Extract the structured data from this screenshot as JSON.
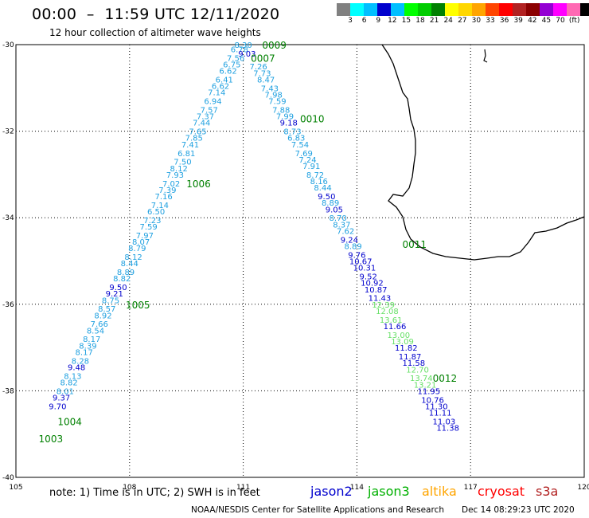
{
  "header": {
    "title": "00:00  –  11:59 UTC 12/11/2020",
    "subtitle": "12 hour collection of altimeter wave heights"
  },
  "color_scale": {
    "colors": [
      "#808080",
      "#00ffff",
      "#00bfff",
      "#0000cd",
      "#00bfff",
      "#00ff00",
      "#00cd00",
      "#008000",
      "#ffff00",
      "#ffd700",
      "#ffa500",
      "#ff4500",
      "#ff0000",
      "#b22222",
      "#8b0000",
      "#9400d3",
      "#ff00ff",
      "#ff69b4",
      "#000000"
    ],
    "labels": [
      "3",
      "6",
      "9",
      "12",
      "15",
      "18",
      "21",
      "24",
      "27",
      "30",
      "33",
      "36",
      "39",
      "42",
      "45",
      "70",
      "(ft)"
    ]
  },
  "axes": {
    "lon_labels": [
      "105",
      "108",
      "111",
      "114",
      "117",
      "120"
    ],
    "lat_labels": [
      "-30",
      "-32",
      "-34",
      "-36",
      "-38",
      "-40"
    ]
  },
  "satellite_colors": {
    "jason2": "#0000cd",
    "jason3": "#00b000",
    "altika": "#ffa500",
    "cryosat": "#ff0000",
    "s3a": "#b22222",
    "light": "#1fa0e0",
    "lightgreen": "#66e066",
    "label_green": "#008000"
  },
  "chart_data": {
    "type": "map-track",
    "lon_range": [
      105,
      120
    ],
    "lat_range": [
      -40,
      -30
    ],
    "pass_labels": [
      {
        "text": "0009",
        "lon": 111.5,
        "lat": -30.0
      },
      {
        "text": "0007",
        "lon": 111.2,
        "lat": -30.3
      },
      {
        "text": "0010",
        "lon": 112.5,
        "lat": -31.7
      },
      {
        "text": "1006",
        "lon": 109.5,
        "lat": -33.2
      },
      {
        "text": "0011",
        "lon": 115.2,
        "lat": -34.6
      },
      {
        "text": "1005",
        "lon": 107.9,
        "lat": -36.0
      },
      {
        "text": "0012",
        "lon": 116.0,
        "lat": -37.7
      },
      {
        "text": "1004",
        "lon": 106.1,
        "lat": -38.7
      },
      {
        "text": "1003",
        "lon": 105.6,
        "lat": -39.1
      }
    ],
    "tracks": [
      {
        "name": "ascending",
        "points": [
          {
            "lon": 111.0,
            "lat": -30.0,
            "v": "8.30",
            "c": "light"
          },
          {
            "lon": 110.9,
            "lat": -30.1,
            "v": "6.78",
            "c": "light"
          },
          {
            "lon": 111.1,
            "lat": -30.2,
            "v": "9.03",
            "c": "jason2"
          },
          {
            "lon": 110.8,
            "lat": -30.3,
            "v": "7.56",
            "c": "light"
          },
          {
            "lon": 110.7,
            "lat": -30.45,
            "v": "6.75",
            "c": "light"
          },
          {
            "lon": 110.6,
            "lat": -30.6,
            "v": "6.62",
            "c": "light"
          },
          {
            "lon": 110.5,
            "lat": -30.8,
            "v": "6.41",
            "c": "light"
          },
          {
            "lon": 110.4,
            "lat": -30.95,
            "v": "6.62",
            "c": "light"
          },
          {
            "lon": 110.3,
            "lat": -31.1,
            "v": "7.14",
            "c": "light"
          },
          {
            "lon": 110.2,
            "lat": -31.3,
            "v": "6.94",
            "c": "light"
          },
          {
            "lon": 110.1,
            "lat": -31.5,
            "v": "7.57",
            "c": "light"
          },
          {
            "lon": 110.0,
            "lat": -31.65,
            "v": "7.37",
            "c": "light"
          },
          {
            "lon": 109.9,
            "lat": -31.8,
            "v": "7.44",
            "c": "light"
          },
          {
            "lon": 109.8,
            "lat": -32.0,
            "v": "7.65",
            "c": "light"
          },
          {
            "lon": 109.7,
            "lat": -32.15,
            "v": "7.85",
            "c": "light"
          },
          {
            "lon": 109.6,
            "lat": -32.3,
            "v": "7.41",
            "c": "light"
          },
          {
            "lon": 109.5,
            "lat": -32.5,
            "v": "6.81",
            "c": "light"
          },
          {
            "lon": 109.4,
            "lat": -32.7,
            "v": "7.50",
            "c": "light"
          },
          {
            "lon": 109.3,
            "lat": -32.85,
            "v": "8.12",
            "c": "light"
          },
          {
            "lon": 109.2,
            "lat": -33.0,
            "v": "7.93",
            "c": "light"
          },
          {
            "lon": 109.1,
            "lat": -33.2,
            "v": "7.02",
            "c": "light"
          },
          {
            "lon": 109.0,
            "lat": -33.35,
            "v": "7.39",
            "c": "light"
          },
          {
            "lon": 108.9,
            "lat": -33.5,
            "v": "7.16",
            "c": "light"
          },
          {
            "lon": 108.8,
            "lat": -33.7,
            "v": "7.14",
            "c": "light"
          },
          {
            "lon": 108.7,
            "lat": -33.85,
            "v": "6.50",
            "c": "light"
          },
          {
            "lon": 108.6,
            "lat": -34.05,
            "v": "7.23",
            "c": "light"
          },
          {
            "lon": 108.5,
            "lat": -34.2,
            "v": "7.59",
            "c": "light"
          },
          {
            "lon": 108.4,
            "lat": -34.4,
            "v": "7.97",
            "c": "light"
          },
          {
            "lon": 108.3,
            "lat": -34.55,
            "v": "8.07",
            "c": "light"
          },
          {
            "lon": 108.2,
            "lat": -34.7,
            "v": "8.79",
            "c": "light"
          },
          {
            "lon": 108.1,
            "lat": -34.9,
            "v": "8.12",
            "c": "light"
          },
          {
            "lon": 108.0,
            "lat": -35.05,
            "v": "8.44",
            "c": "light"
          },
          {
            "lon": 107.9,
            "lat": -35.25,
            "v": "8.89",
            "c": "light"
          },
          {
            "lon": 107.8,
            "lat": -35.4,
            "v": "8.82",
            "c": "light"
          },
          {
            "lon": 107.7,
            "lat": -35.6,
            "v": "9.50",
            "c": "jason2"
          },
          {
            "lon": 107.6,
            "lat": -35.75,
            "v": "9.21",
            "c": "jason2"
          },
          {
            "lon": 107.5,
            "lat": -35.9,
            "v": "8.75",
            "c": "light"
          },
          {
            "lon": 107.4,
            "lat": -36.1,
            "v": "8.57",
            "c": "light"
          },
          {
            "lon": 107.3,
            "lat": -36.25,
            "v": "8.92",
            "c": "light"
          },
          {
            "lon": 107.2,
            "lat": -36.45,
            "v": "7.66",
            "c": "light"
          },
          {
            "lon": 107.1,
            "lat": -36.6,
            "v": "8.54",
            "c": "light"
          },
          {
            "lon": 107.0,
            "lat": -36.8,
            "v": "8.17",
            "c": "light"
          },
          {
            "lon": 106.9,
            "lat": -36.95,
            "v": "8.39",
            "c": "light"
          },
          {
            "lon": 106.8,
            "lat": -37.1,
            "v": "8.17",
            "c": "light"
          },
          {
            "lon": 106.7,
            "lat": -37.3,
            "v": "8.28",
            "c": "light"
          },
          {
            "lon": 106.6,
            "lat": -37.45,
            "v": "9.48",
            "c": "jason2"
          },
          {
            "lon": 106.5,
            "lat": -37.65,
            "v": "8.13",
            "c": "light"
          },
          {
            "lon": 106.4,
            "lat": -37.8,
            "v": "8.82",
            "c": "light"
          },
          {
            "lon": 106.3,
            "lat": -38.0,
            "v": "8.01",
            "c": "light"
          },
          {
            "lon": 106.2,
            "lat": -38.15,
            "v": "9.37",
            "c": "jason2"
          },
          {
            "lon": 106.1,
            "lat": -38.35,
            "v": "9.70",
            "c": "jason2"
          }
        ]
      },
      {
        "name": "descending",
        "points": [
          {
            "lon": 111.4,
            "lat": -30.5,
            "v": "7.26",
            "c": "light"
          },
          {
            "lon": 111.5,
            "lat": -30.65,
            "v": "7.73",
            "c": "light"
          },
          {
            "lon": 111.6,
            "lat": -30.8,
            "v": "8.47",
            "c": "light"
          },
          {
            "lon": 111.7,
            "lat": -31.0,
            "v": "7.43",
            "c": "light"
          },
          {
            "lon": 111.8,
            "lat": -31.15,
            "v": "7.98",
            "c": "light"
          },
          {
            "lon": 111.9,
            "lat": -31.3,
            "v": "7.59",
            "c": "light"
          },
          {
            "lon": 112.0,
            "lat": -31.5,
            "v": "7.88",
            "c": "light"
          },
          {
            "lon": 112.1,
            "lat": -31.65,
            "v": "7.99",
            "c": "light"
          },
          {
            "lon": 112.2,
            "lat": -31.8,
            "v": "9.18",
            "c": "jason2"
          },
          {
            "lon": 112.3,
            "lat": -32.0,
            "v": "8.73",
            "c": "light"
          },
          {
            "lon": 112.4,
            "lat": -32.15,
            "v": "6.83",
            "c": "light"
          },
          {
            "lon": 112.5,
            "lat": -32.3,
            "v": "7.54",
            "c": "light"
          },
          {
            "lon": 112.6,
            "lat": -32.5,
            "v": "7.69",
            "c": "light"
          },
          {
            "lon": 112.7,
            "lat": -32.65,
            "v": "7.24",
            "c": "light"
          },
          {
            "lon": 112.8,
            "lat": -32.8,
            "v": "7.91",
            "c": "light"
          },
          {
            "lon": 112.9,
            "lat": -33.0,
            "v": "8.72",
            "c": "light"
          },
          {
            "lon": 113.0,
            "lat": -33.15,
            "v": "8.16",
            "c": "light"
          },
          {
            "lon": 113.1,
            "lat": -33.3,
            "v": "8.44",
            "c": "light"
          },
          {
            "lon": 113.2,
            "lat": -33.5,
            "v": "9.50",
            "c": "jason2"
          },
          {
            "lon": 113.3,
            "lat": -33.65,
            "v": "8.89",
            "c": "light"
          },
          {
            "lon": 113.4,
            "lat": -33.8,
            "v": "9.05",
            "c": "jason2"
          },
          {
            "lon": 113.5,
            "lat": -34.0,
            "v": "8.70",
            "c": "light"
          },
          {
            "lon": 113.6,
            "lat": -34.15,
            "v": "8.37",
            "c": "light"
          },
          {
            "lon": 113.7,
            "lat": -34.3,
            "v": "7.62",
            "c": "light"
          },
          {
            "lon": 113.8,
            "lat": -34.5,
            "v": "9.24",
            "c": "jason2"
          },
          {
            "lon": 113.9,
            "lat": -34.65,
            "v": "8.89",
            "c": "light"
          },
          {
            "lon": 114.0,
            "lat": -34.85,
            "v": "9.76",
            "c": "jason2"
          },
          {
            "lon": 114.1,
            "lat": -35.0,
            "v": "10.67",
            "c": "jason2"
          },
          {
            "lon": 114.2,
            "lat": -35.15,
            "v": "10.31",
            "c": "jason2"
          },
          {
            "lon": 114.3,
            "lat": -35.35,
            "v": "9.52",
            "c": "jason2"
          },
          {
            "lon": 114.4,
            "lat": -35.5,
            "v": "10.92",
            "c": "jason2"
          },
          {
            "lon": 114.5,
            "lat": -35.65,
            "v": "10.87",
            "c": "jason2"
          },
          {
            "lon": 114.6,
            "lat": -35.85,
            "v": "11.43",
            "c": "jason2"
          },
          {
            "lon": 114.7,
            "lat": -36.0,
            "v": "12.39",
            "c": "lightgreen"
          },
          {
            "lon": 114.8,
            "lat": -36.15,
            "v": "12.08",
            "c": "lightgreen"
          },
          {
            "lon": 114.9,
            "lat": -36.35,
            "v": "13.61",
            "c": "lightgreen"
          },
          {
            "lon": 115.0,
            "lat": -36.5,
            "v": "11.66",
            "c": "jason2"
          },
          {
            "lon": 115.1,
            "lat": -36.7,
            "v": "13.00",
            "c": "lightgreen"
          },
          {
            "lon": 115.2,
            "lat": -36.85,
            "v": "13.09",
            "c": "lightgreen"
          },
          {
            "lon": 115.3,
            "lat": -37.0,
            "v": "11.82",
            "c": "jason2"
          },
          {
            "lon": 115.4,
            "lat": -37.2,
            "v": "11.87",
            "c": "jason2"
          },
          {
            "lon": 115.5,
            "lat": -37.35,
            "v": "11.58",
            "c": "jason2"
          },
          {
            "lon": 115.6,
            "lat": -37.5,
            "v": "12.70",
            "c": "lightgreen"
          },
          {
            "lon": 115.7,
            "lat": -37.7,
            "v": "13.74",
            "c": "lightgreen"
          },
          {
            "lon": 115.8,
            "lat": -37.85,
            "v": "13.21",
            "c": "lightgreen"
          },
          {
            "lon": 115.9,
            "lat": -38.0,
            "v": "11.95",
            "c": "jason2"
          },
          {
            "lon": 116.0,
            "lat": -38.2,
            "v": "10.76",
            "c": "jason2"
          },
          {
            "lon": 116.1,
            "lat": -38.35,
            "v": "11.30",
            "c": "jason2"
          },
          {
            "lon": 116.2,
            "lat": -38.5,
            "v": "11.11",
            "c": "jason2"
          },
          {
            "lon": 116.3,
            "lat": -38.7,
            "v": "11.03",
            "c": "jason2"
          },
          {
            "lon": 116.4,
            "lat": -38.85,
            "v": "11.38",
            "c": "jason2"
          }
        ]
      }
    ]
  },
  "footer": {
    "note": "note: 1) Time is in UTC; 2) SWH is in feet",
    "legend": [
      {
        "label": "jason2",
        "color": "#0000cd"
      },
      {
        "label": "jason3",
        "color": "#00b000"
      },
      {
        "label": "altika",
        "color": "#ffa500"
      },
      {
        "label": "cryosat",
        "color": "#ff0000"
      },
      {
        "label": "s3a",
        "color": "#b22222"
      }
    ],
    "credit": "NOAA/NESDIS Center for Satellite Applications and Research",
    "timestamp": "Dec 14 08:29:23 UTC 2020"
  }
}
